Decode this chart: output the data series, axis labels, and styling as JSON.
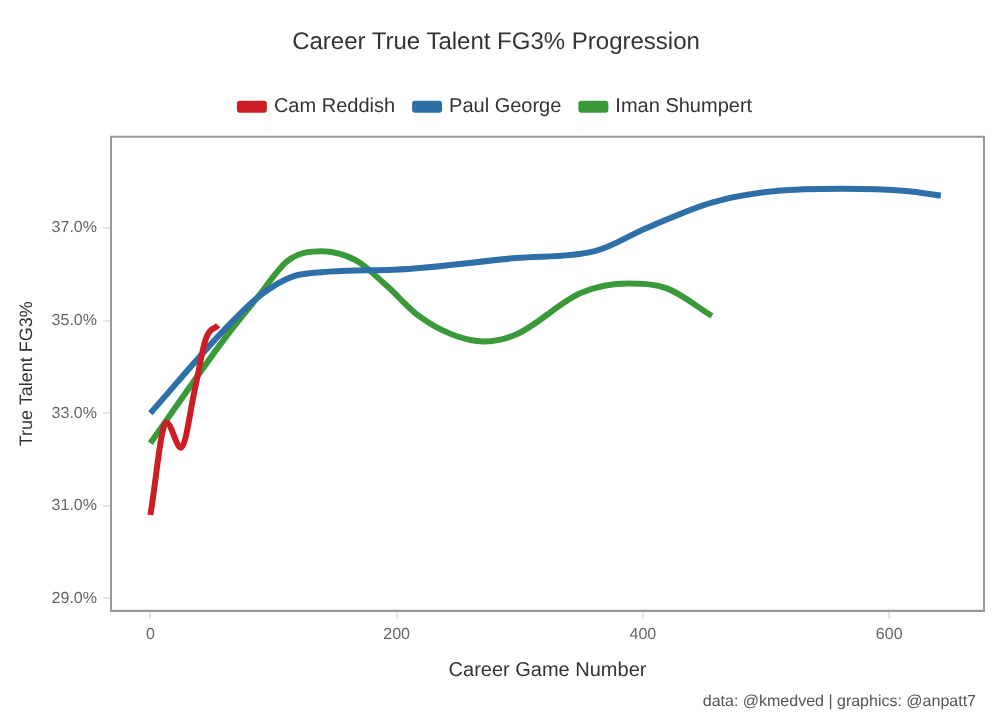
{
  "chart_data": {
    "type": "line",
    "title": "Career True Talent FG3% Progression",
    "xlabel": "Career Game Number",
    "ylabel": "True Talent FG3%",
    "xlim": [
      -32,
      677
    ],
    "xticks": [
      0,
      200,
      400,
      600
    ],
    "ylim": [
      28.73,
      38.97
    ],
    "yticks": [
      {
        "value": 29,
        "label": "29.0%"
      },
      {
        "value": 31,
        "label": "31.0%"
      },
      {
        "value": 33,
        "label": "33.0%"
      },
      {
        "value": 35,
        "label": "35.0%"
      },
      {
        "value": 37,
        "label": "37.0%"
      }
    ],
    "grid": false,
    "legend": "top",
    "marker": "none",
    "line_style": "solid",
    "series": [
      {
        "name": "Cam Reddish",
        "color": "#cc1f24",
        "x": [
          0,
          13,
          25,
          36,
          45,
          55
        ],
        "values": [
          30.8,
          32.8,
          32.25,
          33.5,
          34.6,
          34.9
        ]
      },
      {
        "name": "Paul George",
        "color": "#2e6fa8",
        "x": [
          0,
          60,
          92,
          123,
          198,
          297,
          361,
          403,
          456,
          508,
          562,
          614,
          642
        ],
        "values": [
          33.0,
          34.8,
          35.6,
          36.0,
          36.1,
          36.35,
          36.5,
          37.0,
          37.55,
          37.8,
          37.85,
          37.8,
          37.7
        ]
      },
      {
        "name": "Iman Shumpert",
        "color": "#3a9a3a",
        "x": [
          0,
          60,
          87,
          112,
          139,
          167,
          192,
          218,
          245,
          271,
          297,
          350,
          388,
          419,
          456
        ],
        "values": [
          32.35,
          34.6,
          35.5,
          36.3,
          36.5,
          36.3,
          35.75,
          35.1,
          34.7,
          34.55,
          34.7,
          35.6,
          35.8,
          35.7,
          35.1
        ]
      }
    ],
    "annotations": [
      "data: @kmedved | graphics: @anpatt7"
    ]
  }
}
